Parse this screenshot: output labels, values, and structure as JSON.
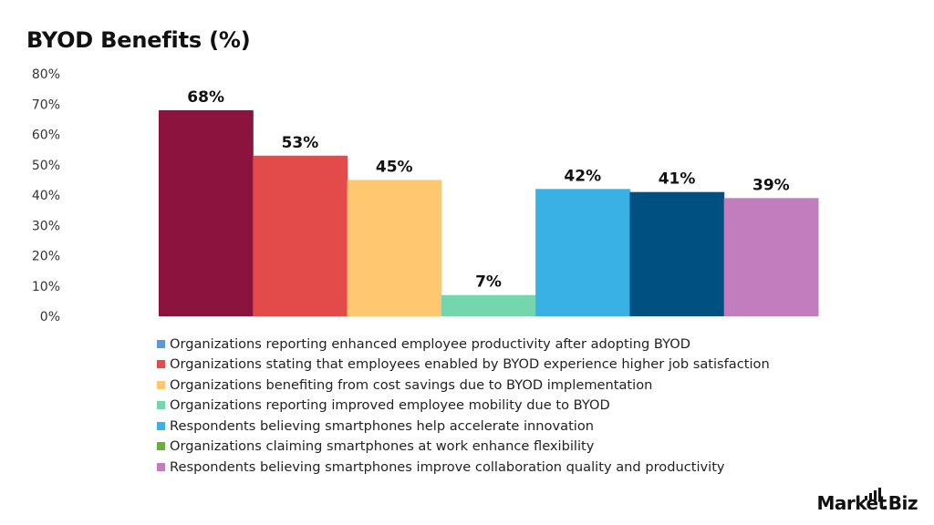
{
  "title": "BYOD Benefits (%)",
  "brand": {
    "name_left": "Market",
    "name_right": ".Biz"
  },
  "chart_data": {
    "type": "bar",
    "title": "BYOD Benefits (%)",
    "xlabel": "",
    "ylabel": "",
    "ylim": [
      0,
      80
    ],
    "yticks": [
      "0%",
      "10%",
      "20%",
      "30%",
      "40%",
      "50%",
      "60%",
      "70%",
      "80%"
    ],
    "grid": false,
    "legend_position": "bottom",
    "series": [
      {
        "name": "Organizations reporting enhanced employee productivity after adopting BYOD",
        "value": 68,
        "label": "68%",
        "bar_color": "#8B133E",
        "legend_color": "#5B9BD5"
      },
      {
        "name": "Organizations stating that employees enabled by BYOD experience higher job satisfaction",
        "value": 53,
        "label": "53%",
        "bar_color": "#E34B4B",
        "legend_color": "#E34B4B"
      },
      {
        "name": "Organizations benefiting from cost savings due to BYOD implementation",
        "value": 45,
        "label": "45%",
        "bar_color": "#FFC870",
        "legend_color": "#FFC870"
      },
      {
        "name": "Organizations reporting improved employee mobility due to BYOD",
        "value": 7,
        "label": "7%",
        "bar_color": "#75D6AE",
        "legend_color": "#75D6AE"
      },
      {
        "name": "Respondents believing smartphones help accelerate innovation",
        "value": 42,
        "label": "42%",
        "bar_color": "#3AB1E5",
        "legend_color": "#3AB1E5"
      },
      {
        "name": "Organizations claiming smartphones at work enhance flexibility",
        "value": 41,
        "label": "41%",
        "bar_color": "#005082",
        "legend_color": "#6AAE3E"
      },
      {
        "name": "Respondents believing smartphones improve collaboration quality and productivity",
        "value": 39,
        "label": "39%",
        "bar_color": "#C27DBE",
        "legend_color": "#C27DBE"
      }
    ]
  }
}
